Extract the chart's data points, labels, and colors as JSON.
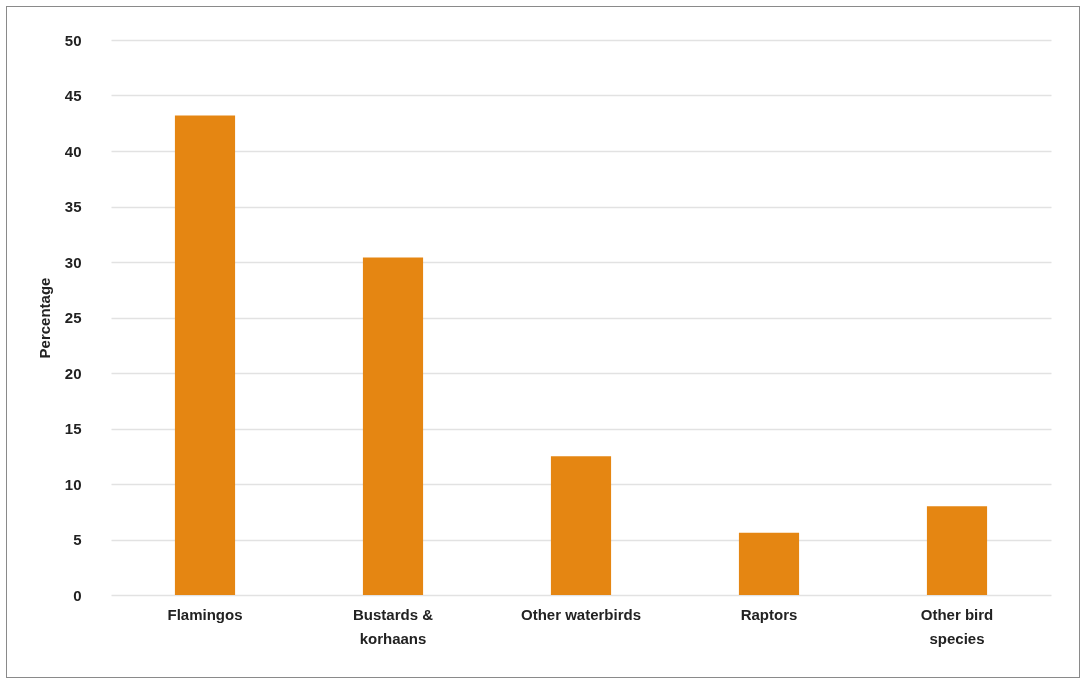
{
  "chart_data": {
    "type": "bar",
    "ylabel": "Percentage",
    "categories": [
      "Flamingos",
      "Bustards & korhaans",
      "Other waterbirds",
      "Raptors",
      "Other bird species"
    ],
    "values": [
      43.2,
      30.4,
      12.5,
      5.6,
      8.0
    ],
    "color": "#e58612",
    "ylim": [
      0,
      50
    ],
    "yticks": [
      0,
      5,
      10,
      15,
      20,
      25,
      30,
      35,
      40,
      45,
      50
    ],
    "grid": "y"
  }
}
